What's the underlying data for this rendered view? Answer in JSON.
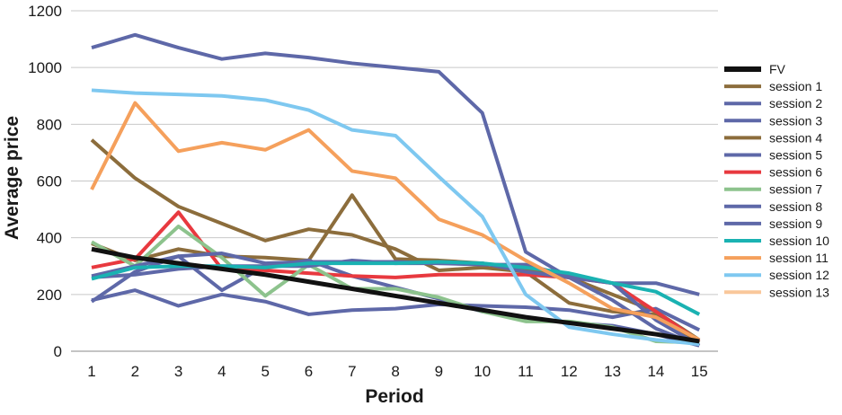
{
  "chart_data": {
    "type": "line",
    "title": "",
    "xlabel": "Period",
    "ylabel": "Average price",
    "x": [
      1,
      2,
      3,
      4,
      5,
      6,
      7,
      8,
      9,
      10,
      11,
      12,
      13,
      14,
      15
    ],
    "ylim": [
      0,
      1200
    ],
    "yticks": [
      0,
      200,
      400,
      600,
      800,
      1000,
      1200
    ],
    "grid": "horizontal",
    "legend_position": "right",
    "series": [
      {
        "name": "FV",
        "color": "#111111",
        "values": [
          360,
          330,
          310,
          290,
          270,
          245,
          220,
          195,
          170,
          145,
          120,
          100,
          80,
          60,
          35
        ]
      },
      {
        "name": "session 1",
        "color": "#8c6d3c",
        "values": [
          380,
          320,
          360,
          335,
          330,
          320,
          550,
          325,
          320,
          310,
          285,
          260,
          200,
          140,
          40
        ]
      },
      {
        "name": "session 2",
        "color": "#5e68a8",
        "values": [
          1070,
          1115,
          1070,
          1030,
          1050,
          1035,
          1015,
          1000,
          985,
          840,
          350,
          260,
          180,
          80,
          20
        ]
      },
      {
        "name": "session 3",
        "color": "#5e68a8",
        "values": [
          180,
          215,
          160,
          200,
          175,
          130,
          145,
          150,
          165,
          160,
          155,
          145,
          120,
          150,
          75
        ]
      },
      {
        "name": "session 4",
        "color": "#8c6d3c",
        "values": [
          745,
          610,
          510,
          450,
          390,
          430,
          410,
          360,
          285,
          295,
          280,
          170,
          140,
          130,
          30
        ]
      },
      {
        "name": "session 5",
        "color": "#5e68a8",
        "values": [
          175,
          280,
          335,
          215,
          300,
          320,
          265,
          225,
          185,
          140,
          120,
          100,
          90,
          60,
          20
        ]
      },
      {
        "name": "session 6",
        "color": "#e8393f",
        "values": [
          295,
          325,
          490,
          290,
          285,
          275,
          265,
          260,
          270,
          270,
          270,
          260,
          240,
          140,
          35
        ]
      },
      {
        "name": "session 7",
        "color": "#8dc38d",
        "values": [
          385,
          300,
          440,
          330,
          195,
          305,
          220,
          220,
          190,
          140,
          105,
          105,
          85,
          35,
          30
        ]
      },
      {
        "name": "session 8",
        "color": "#5e68a8",
        "values": [
          265,
          300,
          335,
          345,
          310,
          315,
          315,
          315,
          310,
          310,
          280,
          260,
          240,
          240,
          200
        ]
      },
      {
        "name": "session 9",
        "color": "#5e68a8",
        "values": [
          260,
          270,
          290,
          300,
          300,
          300,
          320,
          310,
          310,
          305,
          305,
          265,
          240,
          110,
          20
        ]
      },
      {
        "name": "session 10",
        "color": "#1ab2b2",
        "values": [
          255,
          295,
          300,
          300,
          295,
          310,
          310,
          310,
          315,
          310,
          295,
          275,
          240,
          210,
          130
        ]
      },
      {
        "name": "session 11",
        "color": "#f5a05c",
        "values": [
          570,
          875,
          705,
          735,
          710,
          780,
          635,
          610,
          465,
          410,
          320,
          240,
          150,
          120,
          40
        ]
      },
      {
        "name": "session 12",
        "color": "#7ec8f0",
        "values": [
          920,
          910,
          905,
          900,
          885,
          850,
          780,
          760,
          615,
          475,
          200,
          85,
          60,
          40,
          25
        ]
      },
      {
        "name": "session 13",
        "color": "#f9c79a",
        "values": [
          null,
          null,
          null,
          null,
          null,
          null,
          null,
          null,
          null,
          null,
          null,
          null,
          null,
          null,
          null
        ]
      }
    ]
  }
}
